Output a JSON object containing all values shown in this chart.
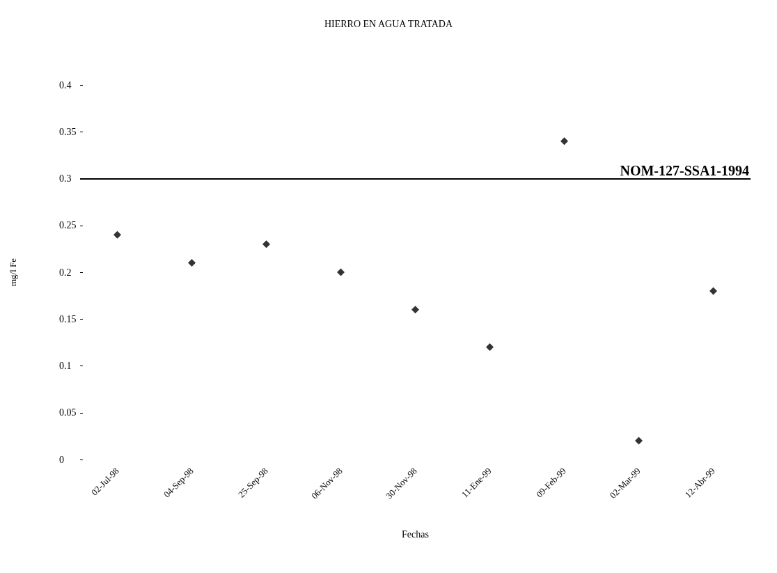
{
  "chart_data": {
    "type": "scatter",
    "title": "HIERRO EN AGUA TRATADA",
    "xlabel": "Fechas",
    "ylabel": "mg/l Fe",
    "categories": [
      "02-Jul-98",
      "04-Sep-98",
      "25-Sep-98",
      "06-Nov-98",
      "30-Nov-98",
      "11-Ene-99",
      "09-Feb-99",
      "02-Mar-99",
      "12-Abr-99"
    ],
    "series": [
      {
        "color": "#000000",
        "values": [
          0.24,
          0.21,
          0.23,
          0.2,
          0.16,
          0.12,
          0.34,
          0.02,
          0.18
        ]
      }
    ],
    "ylim": [
      0,
      0.4
    ],
    "yticks": [
      0,
      0.05,
      0.1,
      0.15,
      0.2,
      0.25,
      0.3,
      0.35,
      0.4
    ],
    "ref_lines": [
      {
        "axis": "y",
        "value": 0.3,
        "label": "NOM-127-SSA1-1994",
        "color": "#000000",
        "line_style": "solid"
      }
    ],
    "marker": "diamond",
    "grid": false
  }
}
